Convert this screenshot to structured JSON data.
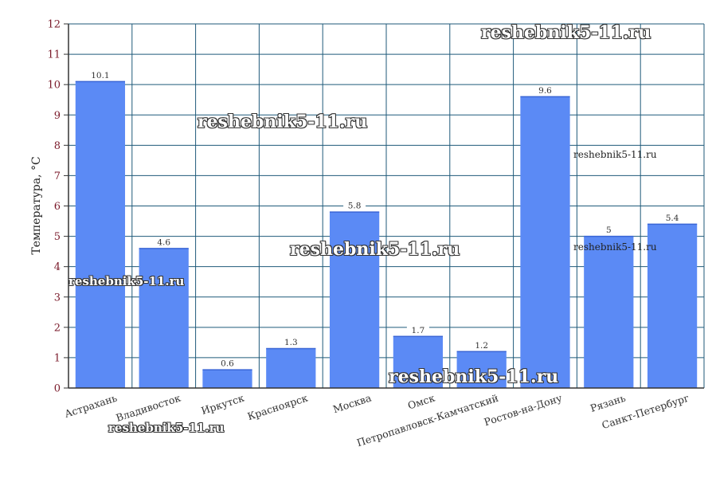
{
  "chart_data": {
    "type": "bar",
    "ylabel": "Температура, °С",
    "ylim": [
      0,
      12
    ],
    "yticks": [
      0,
      1,
      2,
      3,
      4,
      5,
      6,
      7,
      8,
      9,
      10,
      11,
      12
    ],
    "grid": true,
    "categories": [
      "Астрахань",
      "Владивосток",
      "Иркутск",
      "Красноярск",
      "Москва",
      "Омск",
      "Петропавловск-Камчатский",
      "Ростов-на-Дону",
      "Рязань",
      "Санкт-Петербург"
    ],
    "values": [
      10.1,
      4.6,
      0.6,
      1.3,
      5.8,
      1.7,
      1.2,
      9.6,
      5,
      5.4
    ],
    "data_labels": [
      "10.1",
      "4.6",
      "0.6",
      "1.3",
      "5.8",
      "1.7",
      "1.2",
      "9.6",
      "5",
      "5.4"
    ],
    "bar_color": "#5b8af5",
    "grid_color": "#1f5a7a"
  },
  "watermarks": [
    "reshebnik5-11.ru",
    "reshebnik5-11.ru",
    "reshebnik5-11.ru",
    "reshebnik5-11.ru",
    "reshebnik5-11.ru",
    "reshebnik5-11.ru",
    "reshebnik5-11.ru",
    "reshebnik5-11.ru"
  ]
}
